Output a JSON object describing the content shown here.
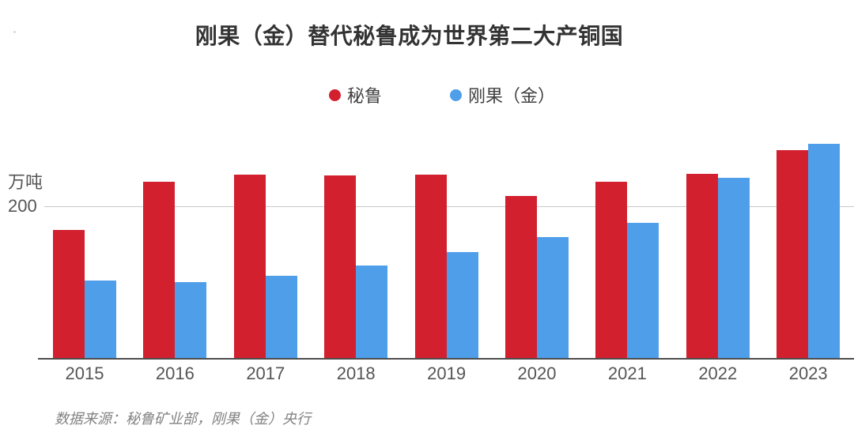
{
  "figure": {
    "title": "刚果（金）替代秘鲁成为世界第二大产铜国",
    "y_unit_label": "万吨",
    "y_tick_label": "200",
    "source_note": "数据来源：秘鲁矿业部，刚果（金）央行"
  },
  "legend": {
    "items": [
      {
        "label": "秘鲁",
        "color": "#d2202f"
      },
      {
        "label": "刚果（金）",
        "color": "#4f9ee9"
      }
    ]
  },
  "chart_data": {
    "type": "bar",
    "title": "刚果（金）替代秘鲁成为世界第二大产铜国",
    "categories": [
      "2015",
      "2016",
      "2017",
      "2018",
      "2019",
      "2020",
      "2021",
      "2022",
      "2023"
    ],
    "series": [
      {
        "name": "秘鲁",
        "color": "#d2202f",
        "values": [
          170,
          234,
          243,
          242,
          243,
          215,
          233,
          244,
          275
        ]
      },
      {
        "name": "刚果（金）",
        "color": "#4f9ee9",
        "values": [
          103,
          101,
          109,
          123,
          140,
          160,
          179,
          239,
          284
        ]
      }
    ],
    "ylabel": "万吨",
    "yticks": [
      200
    ],
    "ylim": [
      0,
      300
    ],
    "xlabel": "",
    "legend_position": "top-center",
    "grid": "single-horizontal-gridline-at-200",
    "source": "数据来源：秘鲁矿业部，刚果（金）央行"
  }
}
